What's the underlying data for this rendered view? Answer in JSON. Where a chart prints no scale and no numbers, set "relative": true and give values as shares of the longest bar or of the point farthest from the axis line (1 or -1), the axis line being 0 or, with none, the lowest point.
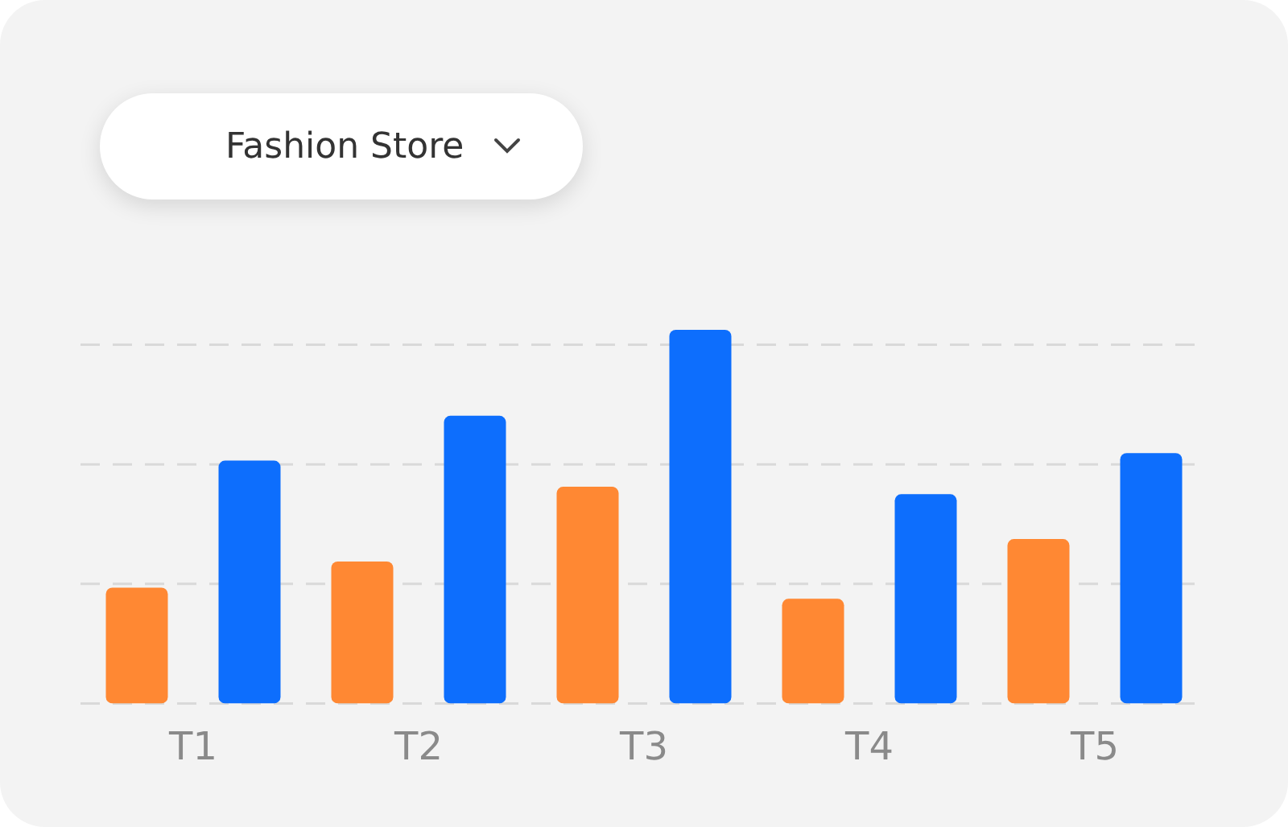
{
  "chart_data": {
    "type": "bar",
    "title": "Fashion Store",
    "categories": [
      "T1",
      "T2",
      "T3",
      "T4",
      "T5"
    ],
    "relative": true,
    "ref_lines": [
      {
        "axis": "y",
        "value": 0,
        "color": "#d9d9d9",
        "line_style": "dashed"
      },
      {
        "axis": "y",
        "value": 0.32,
        "color": "#d9d9d9",
        "line_style": "dashed"
      },
      {
        "axis": "y",
        "value": 0.64,
        "color": "#d9d9d9",
        "line_style": "dashed"
      },
      {
        "axis": "y",
        "value": 0.96,
        "color": "#d9d9d9",
        "line_style": "dashed"
      }
    ],
    "series": [
      {
        "color": "#ff8833",
        "values": [
          0.31,
          0.38,
          0.58,
          0.28,
          0.44
        ]
      },
      {
        "color": "#0d6efd",
        "values": [
          0.65,
          0.77,
          1,
          0.56,
          0.67
        ]
      }
    ]
  }
}
